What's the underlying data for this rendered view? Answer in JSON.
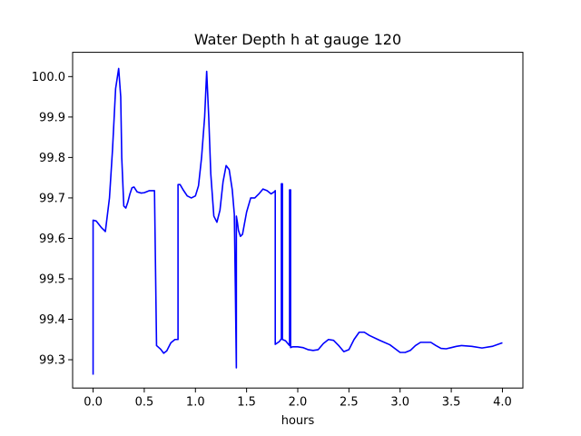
{
  "chart_data": {
    "type": "line",
    "title": "Water Depth h at gauge 120",
    "xlabel": "hours",
    "ylabel": "",
    "xlim": [
      -0.2,
      4.2
    ],
    "ylim": [
      99.23,
      100.06
    ],
    "xticks": [
      0.0,
      0.5,
      1.0,
      1.5,
      2.0,
      2.5,
      3.0,
      3.5,
      4.0
    ],
    "xtick_labels": [
      "0.0",
      "0.5",
      "1.0",
      "1.5",
      "2.0",
      "2.5",
      "3.0",
      "3.5",
      "4.0"
    ],
    "yticks": [
      99.3,
      99.4,
      99.5,
      99.6,
      99.7,
      99.8,
      99.9,
      100.0
    ],
    "ytick_labels": [
      "99.3",
      "99.4",
      "99.5",
      "99.6",
      "99.7",
      "99.8",
      "99.9",
      "100.0"
    ],
    "grid": false,
    "series": [
      {
        "color": "#0000ff",
        "x": [
          0.0,
          0.0,
          0.03,
          0.08,
          0.12,
          0.16,
          0.19,
          0.22,
          0.25,
          0.27,
          0.28,
          0.3,
          0.32,
          0.34,
          0.36,
          0.38,
          0.4,
          0.43,
          0.47,
          0.5,
          0.55,
          0.6,
          0.62,
          0.62,
          0.66,
          0.69,
          0.72,
          0.76,
          0.8,
          0.83,
          0.83,
          0.85,
          0.88,
          0.92,
          0.96,
          1.0,
          1.03,
          1.06,
          1.09,
          1.11,
          1.13,
          1.15,
          1.18,
          1.21,
          1.24,
          1.27,
          1.3,
          1.33,
          1.36,
          1.38,
          1.39,
          1.4,
          1.4,
          1.41,
          1.42,
          1.44,
          1.46,
          1.5,
          1.54,
          1.58,
          1.62,
          1.66,
          1.7,
          1.74,
          1.77,
          1.78,
          1.78,
          1.82,
          1.84,
          1.84,
          1.85,
          1.85,
          1.88,
          1.91,
          1.92,
          1.92,
          1.93,
          1.93,
          1.95,
          2.0,
          2.05,
          2.1,
          2.15,
          2.2,
          2.25,
          2.3,
          2.35,
          2.4,
          2.45,
          2.5,
          2.55,
          2.6,
          2.65,
          2.7,
          2.8,
          2.9,
          3.0,
          3.05,
          3.1,
          3.15,
          3.2,
          3.3,
          3.35,
          3.4,
          3.45,
          3.5,
          3.55,
          3.6,
          3.7,
          3.8,
          3.9,
          4.0
        ],
        "values": [
          99.263,
          99.645,
          99.643,
          99.627,
          99.617,
          99.7,
          99.82,
          99.97,
          100.02,
          99.95,
          99.8,
          99.68,
          99.675,
          99.69,
          99.71,
          99.725,
          99.727,
          99.715,
          99.712,
          99.713,
          99.718,
          99.718,
          99.335,
          99.335,
          99.326,
          99.316,
          99.322,
          99.342,
          99.35,
          99.35,
          99.733,
          99.733,
          99.72,
          99.705,
          99.7,
          99.705,
          99.73,
          99.8,
          99.9,
          100.013,
          99.9,
          99.76,
          99.655,
          99.64,
          99.67,
          99.74,
          99.78,
          99.77,
          99.72,
          99.66,
          99.48,
          99.28,
          99.655,
          99.64,
          99.62,
          99.605,
          99.61,
          99.665,
          99.7,
          99.7,
          99.71,
          99.722,
          99.718,
          99.71,
          99.715,
          99.718,
          99.338,
          99.345,
          99.352,
          99.735,
          99.735,
          99.35,
          99.347,
          99.338,
          99.335,
          99.72,
          99.72,
          99.33,
          99.332,
          99.332,
          99.33,
          99.325,
          99.323,
          99.325,
          99.34,
          99.35,
          99.348,
          99.335,
          99.32,
          99.325,
          99.35,
          99.368,
          99.368,
          99.36,
          99.348,
          99.337,
          99.318,
          99.318,
          99.323,
          99.335,
          99.343,
          99.343,
          99.335,
          99.328,
          99.327,
          99.33,
          99.333,
          99.335,
          99.333,
          99.329,
          99.333,
          99.342
        ]
      }
    ]
  }
}
